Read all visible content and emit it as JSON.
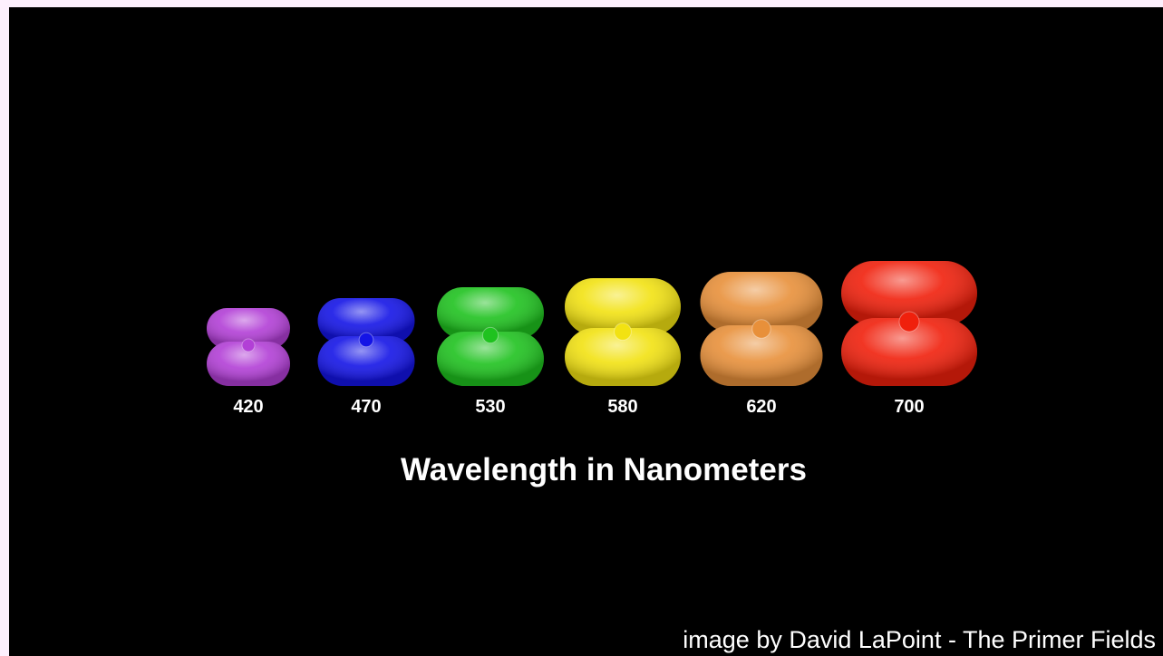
{
  "items": [
    {
      "label": "420",
      "color": "#b23fd6"
    },
    {
      "label": "470",
      "color": "#1414e6"
    },
    {
      "label": "530",
      "color": "#1fc21f"
    },
    {
      "label": "580",
      "color": "#f2e212"
    },
    {
      "label": "620",
      "color": "#e8903a"
    },
    {
      "label": "700",
      "color": "#f0200c"
    }
  ],
  "title": "Wavelength in Nanometers",
  "credit": "image by David LaPoint - The Primer Fields"
}
